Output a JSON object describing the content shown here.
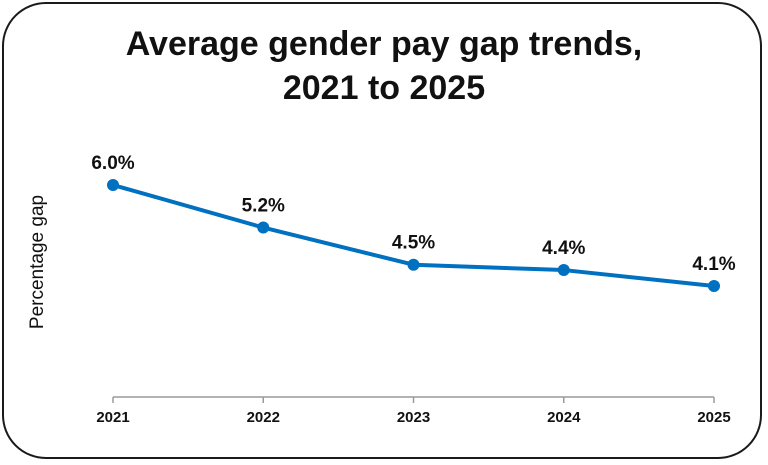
{
  "chart_data": {
    "type": "line",
    "title_lines": [
      "Average gender pay gap trends,",
      "2021 to 2025"
    ],
    "xlabel": "",
    "ylabel": "Percentage gap",
    "categories": [
      "2021",
      "2022",
      "2023",
      "2024",
      "2025"
    ],
    "series": [
      {
        "values": [
          6.0,
          5.2,
          4.5,
          4.4,
          4.1
        ],
        "data_labels": [
          "6.0%",
          "5.2%",
          "4.5%",
          "4.4%",
          "4.1%"
        ],
        "color": "#0070C0"
      }
    ],
    "grid": false,
    "legend": "none"
  }
}
